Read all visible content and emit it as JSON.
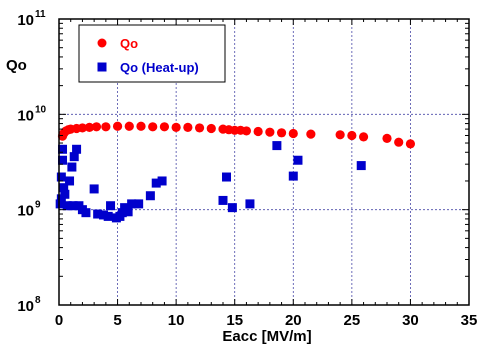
{
  "chart_data": {
    "type": "scatter",
    "xlabel": "Eacc  [MV/m]",
    "ylabel": "Qo",
    "xlim": [
      0,
      35
    ],
    "ylim": [
      100000000,
      100000000000
    ],
    "yscale": "log",
    "grid": true,
    "legend_position": "top-left",
    "x_ticks": [
      "0",
      "5",
      "10",
      "15",
      "20",
      "25",
      "30",
      "35"
    ],
    "y_ticks": [
      {
        "base": "10",
        "exp": "8",
        "value": 100000000
      },
      {
        "base": "10",
        "exp": "9",
        "value": 1000000000
      },
      {
        "base": "10",
        "exp": "10",
        "value": 10000000000
      },
      {
        "base": "10",
        "exp": "11",
        "value": 100000000000
      }
    ],
    "series": [
      {
        "name": "Qo",
        "color": "#ff0000",
        "marker": "circle",
        "points": [
          [
            0.3,
            5900000000.0
          ],
          [
            0.4,
            6300000000.0
          ],
          [
            0.6,
            6700000000.0
          ],
          [
            0.8,
            6900000000.0
          ],
          [
            1.0,
            7000000000.0
          ],
          [
            1.5,
            7100000000.0
          ],
          [
            2.0,
            7200000000.0
          ],
          [
            2.6,
            7300000000.0
          ],
          [
            3.2,
            7400000000.0
          ],
          [
            4.0,
            7400000000.0
          ],
          [
            5.0,
            7500000000.0
          ],
          [
            6.0,
            7500000000.0
          ],
          [
            7.0,
            7500000000.0
          ],
          [
            8.0,
            7400000000.0
          ],
          [
            9.0,
            7400000000.0
          ],
          [
            10.0,
            7300000000.0
          ],
          [
            11.0,
            7300000000.0
          ],
          [
            12.0,
            7200000000.0
          ],
          [
            13.0,
            7100000000.0
          ],
          [
            14.0,
            7000000000.0
          ],
          [
            14.5,
            6900000000.0
          ],
          [
            15.0,
            6800000000.0
          ],
          [
            15.5,
            6800000000.0
          ],
          [
            16.0,
            6700000000.0
          ],
          [
            17.0,
            6600000000.0
          ],
          [
            18.0,
            6500000000.0
          ],
          [
            19.0,
            6400000000.0
          ],
          [
            20.0,
            6300000000.0
          ],
          [
            21.5,
            6200000000.0
          ],
          [
            24.0,
            6100000000.0
          ],
          [
            25.0,
            6000000000.0
          ],
          [
            26.0,
            5800000000.0
          ],
          [
            28.0,
            5600000000.0
          ],
          [
            29.0,
            5100000000.0
          ],
          [
            30.0,
            4900000000.0
          ]
        ]
      },
      {
        "name": "Qo (Heat-up)",
        "color": "#0000cc",
        "marker": "square",
        "points": [
          [
            0.1,
            1150000000.0
          ],
          [
            0.2,
            1300000000.0
          ],
          [
            0.2,
            2200000000.0
          ],
          [
            0.3,
            3300000000.0
          ],
          [
            0.3,
            4300000000.0
          ],
          [
            0.4,
            1700000000.0
          ],
          [
            0.5,
            1450000000.0
          ],
          [
            0.7,
            1100000000.0
          ],
          [
            0.9,
            2000000000.0
          ],
          [
            1.1,
            2800000000.0
          ],
          [
            1.2,
            1100000000.0
          ],
          [
            1.3,
            3600000000.0
          ],
          [
            1.5,
            4300000000.0
          ],
          [
            1.7,
            1100000000.0
          ],
          [
            2.0,
            1000000000.0
          ],
          [
            2.3,
            930000000.0
          ],
          [
            3.0,
            1650000000.0
          ],
          [
            3.3,
            900000000.0
          ],
          [
            3.8,
            880000000.0
          ],
          [
            4.2,
            850000000.0
          ],
          [
            4.4,
            1100000000.0
          ],
          [
            4.9,
            820000000.0
          ],
          [
            5.2,
            850000000.0
          ],
          [
            5.4,
            930000000.0
          ],
          [
            5.6,
            1050000000.0
          ],
          [
            5.9,
            950000000.0
          ],
          [
            6.2,
            1150000000.0
          ],
          [
            6.8,
            1150000000.0
          ],
          [
            7.8,
            1400000000.0
          ],
          [
            8.3,
            1900000000.0
          ],
          [
            8.8,
            2000000000.0
          ],
          [
            14.0,
            1250000000.0
          ],
          [
            14.3,
            2200000000.0
          ],
          [
            14.8,
            1050000000.0
          ],
          [
            16.3,
            1150000000.0
          ],
          [
            18.6,
            4700000000.0
          ],
          [
            20.0,
            2250000000.0
          ],
          [
            20.4,
            3300000000.0
          ],
          [
            25.8,
            2900000000.0
          ]
        ]
      }
    ]
  }
}
